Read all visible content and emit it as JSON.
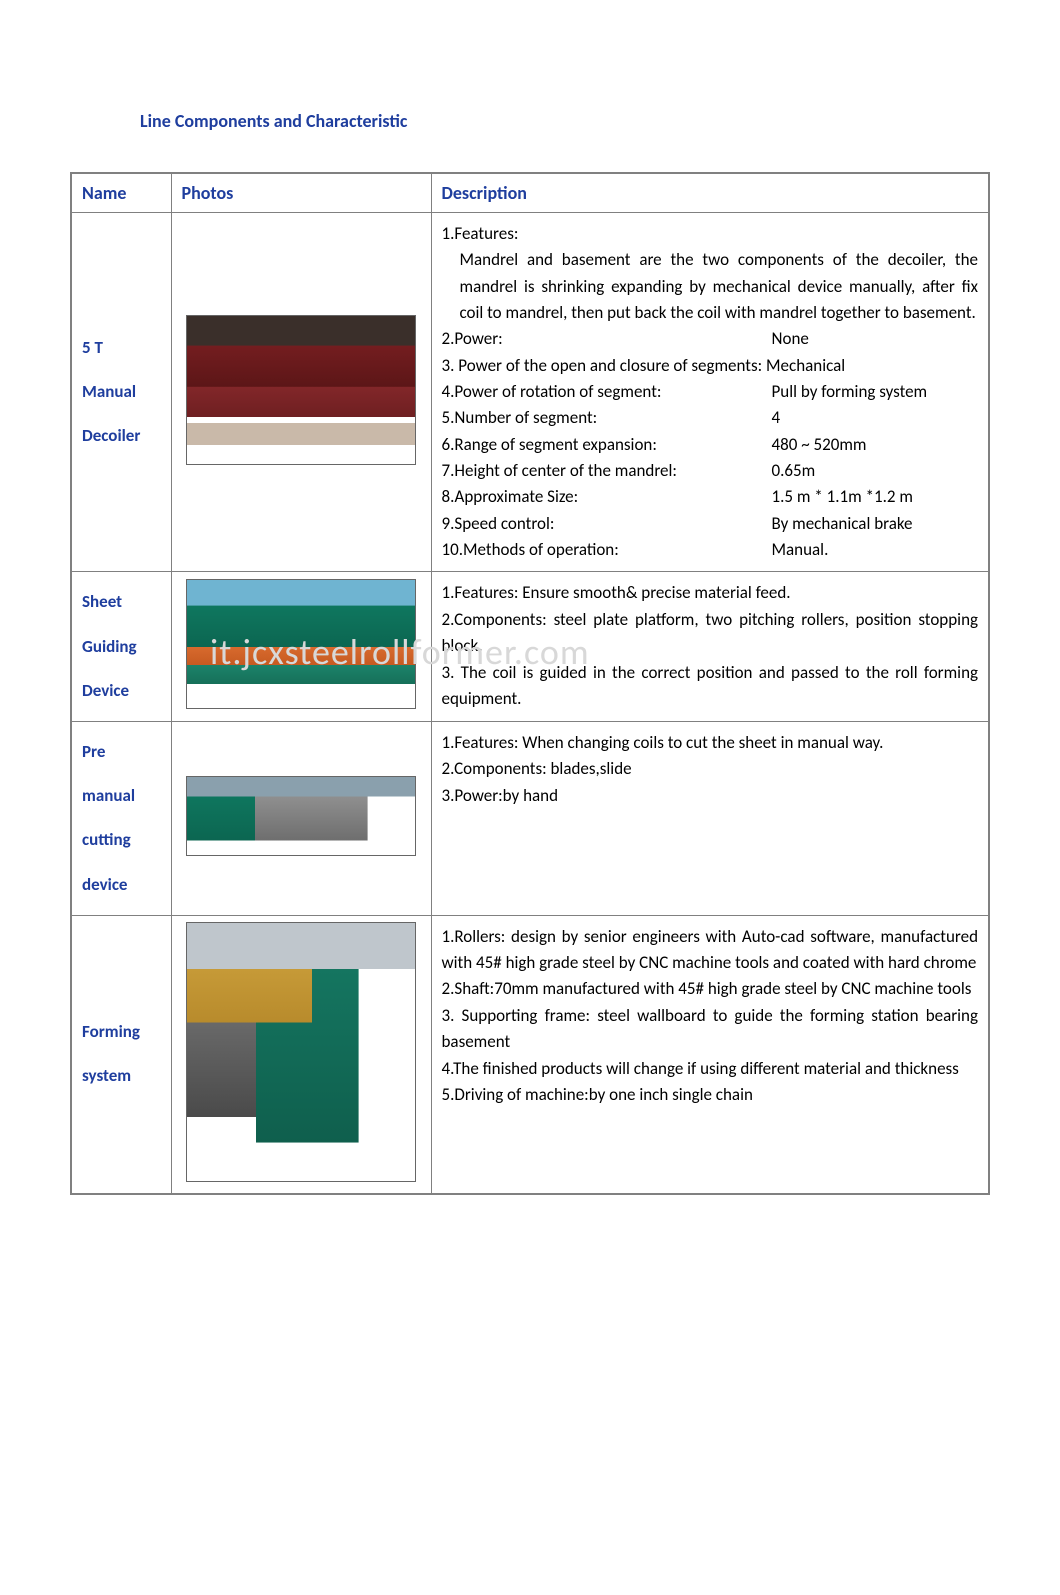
{
  "page": {
    "title": "Line Components and Characteristic",
    "watermark": "it.jcxsteelrollformer.com",
    "title_color": "#1f3e9e",
    "header_color": "#1f3e9e",
    "border_color": "#808080",
    "text_color": "#000000",
    "background_color": "#ffffff",
    "watermark_color": "#d8d8d8",
    "font_family": "Calibri",
    "title_fontsize": 18,
    "body_fontsize": 17
  },
  "table": {
    "headers": {
      "name": "Name",
      "photos": "Photos",
      "description": "Description"
    },
    "rows": [
      {
        "name_lines": [
          "5 T",
          "Manual",
          "Decoiler"
        ],
        "photo_class": "ph-decoiler",
        "description": {
          "feature_head": "1.Features:",
          "feature_body": "Mandrel and basement are the two components of the decoiler, the mandrel is shrinking expanding by mechanical device manually, after fix coil to mandrel, then put back the coil with mandrel together to basement.",
          "kv": [
            {
              "k": "2.Power:",
              "v": "None"
            },
            {
              "k": "3. Power of the open and closure of segments: Mechanical",
              "v": ""
            },
            {
              "k": "4.Power of rotation of segment:",
              "v": "Pull by forming system"
            },
            {
              "k": "5.Number of segment:",
              "v": "4"
            },
            {
              "k": "6.Range of segment expansion:",
              "v": "480 ~ 520mm"
            },
            {
              "k": "7.Height of center of the mandrel:",
              "v": "0.65m"
            },
            {
              "k": "8.Approximate Size:",
              "v": "1.5 m * 1.1m *1.2 m"
            },
            {
              "k": "9.Speed control:",
              "v": "By mechanical brake"
            },
            {
              "k": "10.Methods of operation:",
              "v": "Manual."
            }
          ]
        }
      },
      {
        "name_lines": [
          "Sheet",
          "Guiding",
          "Device"
        ],
        "photo_class": "ph-guiding",
        "description": {
          "lines": [
            "1.Features: Ensure smooth& precise material feed.",
            "2.Components: steel plate platform, two pitching rollers, position stopping block.",
            "3. The coil is guided in the correct position and passed to the roll forming equipment."
          ]
        }
      },
      {
        "name_lines": [
          "Pre",
          "manual",
          "cutting",
          "device"
        ],
        "photo_class": "ph-cutting",
        "description": {
          "lines": [
            "1.Features: When changing coils to cut the sheet in manual way.",
            "2.Components: blades,slide",
            "3.Power:by hand"
          ]
        }
      },
      {
        "name_lines": [
          "Forming",
          "system"
        ],
        "photo_class": "ph-forming",
        "description": {
          "lines": [
            "1.Rollers: design by senior engineers with Auto-cad software, manufactured with 45# high grade steel by CNC machine tools and coated with hard chrome",
            "2.Shaft:70mm manufactured with 45# high grade steel by CNC machine tools",
            "3. Supporting frame: steel wallboard to guide the forming station bearing basement",
            "4.The finished products will change if using different material and thickness",
            "5.Driving of machine:by one inch single chain"
          ]
        }
      }
    ]
  }
}
